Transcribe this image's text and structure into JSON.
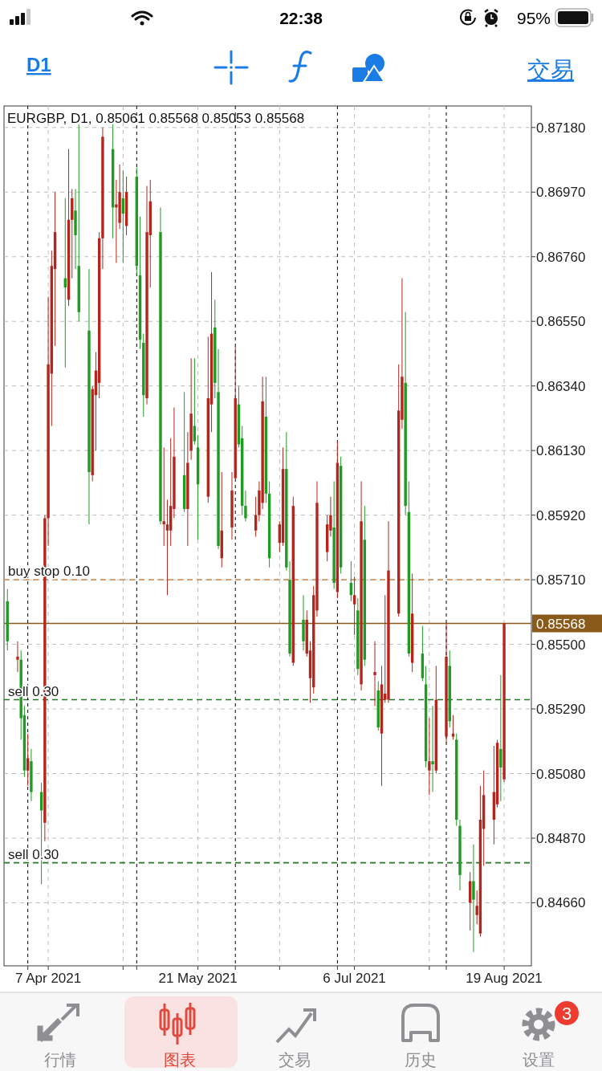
{
  "chart_data": {
    "type": "candlestick",
    "title": "EURGBP, D1, 0.85061 0.85568 0.85053 0.85568",
    "x": [
      "2021-03-26",
      "2021-03-29",
      "2021-03-30",
      "2021-03-31",
      "2021-04-01",
      "2021-04-02",
      "2021-04-05",
      "2021-04-06",
      "2021-04-07",
      "2021-04-08",
      "2021-04-09",
      "2021-04-12",
      "2021-04-13",
      "2021-04-14",
      "2021-04-15",
      "2021-04-16",
      "2021-04-19",
      "2021-04-20",
      "2021-04-21",
      "2021-04-22",
      "2021-04-23",
      "2021-04-26",
      "2021-04-27",
      "2021-04-28",
      "2021-04-29",
      "2021-04-30",
      "2021-05-03",
      "2021-05-04",
      "2021-05-05",
      "2021-05-06",
      "2021-05-07",
      "2021-05-10",
      "2021-05-11",
      "2021-05-12",
      "2021-05-13",
      "2021-05-14",
      "2021-05-17",
      "2021-05-18",
      "2021-05-19",
      "2021-05-20",
      "2021-05-21",
      "2021-05-24",
      "2021-05-25",
      "2021-05-26",
      "2021-05-27",
      "2021-05-28",
      "2021-05-31",
      "2021-06-01",
      "2021-06-02",
      "2021-06-03",
      "2021-06-04",
      "2021-06-07",
      "2021-06-08",
      "2021-06-09",
      "2021-06-10",
      "2021-06-11",
      "2021-06-14",
      "2021-06-15",
      "2021-06-16",
      "2021-06-17",
      "2021-06-18",
      "2021-06-21",
      "2021-06-22",
      "2021-06-23",
      "2021-06-24",
      "2021-06-25",
      "2021-06-28",
      "2021-06-29",
      "2021-06-30",
      "2021-07-01",
      "2021-07-02",
      "2021-07-05",
      "2021-07-06",
      "2021-07-07",
      "2021-07-08",
      "2021-07-09",
      "2021-07-12",
      "2021-07-13",
      "2021-07-14",
      "2021-07-15",
      "2021-07-16",
      "2021-07-19",
      "2021-07-20",
      "2021-07-21",
      "2021-07-22",
      "2021-07-23",
      "2021-07-26",
      "2021-07-27",
      "2021-07-28",
      "2021-07-29",
      "2021-07-30",
      "2021-08-02",
      "2021-08-03",
      "2021-08-04",
      "2021-08-05",
      "2021-08-06",
      "2021-08-09",
      "2021-08-10",
      "2021-08-11",
      "2021-08-12",
      "2021-08-13",
      "2021-08-16",
      "2021-08-17",
      "2021-08-18",
      "2021-08-19"
    ],
    "ohlc": [
      [
        0.8564,
        0.8568,
        0.8548,
        0.8551
      ],
      [
        0.8545,
        0.8551,
        0.8541,
        0.8546
      ],
      [
        0.8545,
        0.8548,
        0.8519,
        0.8526
      ],
      [
        0.8527,
        0.853,
        0.8507,
        0.8509
      ],
      [
        0.8509,
        0.8521,
        0.8504,
        0.8513
      ],
      [
        0.8512,
        0.8516,
        0.8499,
        0.8502
      ],
      [
        0.8502,
        0.8505,
        0.8472,
        0.8496
      ],
      [
        0.8492,
        0.8592,
        0.8486,
        0.8591
      ],
      [
        0.8591,
        0.8663,
        0.8582,
        0.8641
      ],
      [
        0.8638,
        0.8678,
        0.8621,
        0.8673
      ],
      [
        0.8672,
        0.8697,
        0.8647,
        0.8684
      ],
      [
        0.8669,
        0.8695,
        0.864,
        0.8666
      ],
      [
        0.8662,
        0.8711,
        0.866,
        0.8688
      ],
      [
        0.8688,
        0.8698,
        0.8669,
        0.8695
      ],
      [
        0.8691,
        0.8698,
        0.8672,
        0.8683
      ],
      [
        0.8673,
        0.8719,
        0.8655,
        0.8658
      ],
      [
        0.8652,
        0.8672,
        0.8589,
        0.8606
      ],
      [
        0.8605,
        0.8634,
        0.8603,
        0.8633
      ],
      [
        0.8631,
        0.8645,
        0.8613,
        0.8639
      ],
      [
        0.8635,
        0.8684,
        0.863,
        0.8682
      ],
      [
        0.8682,
        0.8718,
        0.8672,
        0.8715
      ],
      [
        0.8711,
        0.8719,
        0.8682,
        0.8692
      ],
      [
        0.8692,
        0.8701,
        0.8674,
        0.8693
      ],
      [
        0.8687,
        0.8706,
        0.8685,
        0.8697
      ],
      [
        0.8695,
        0.8704,
        0.8674,
        0.869
      ],
      [
        0.8686,
        0.8702,
        0.8683,
        0.8697
      ],
      [
        0.8702,
        0.8705,
        0.867,
        0.8673
      ],
      [
        0.867,
        0.8689,
        0.8646,
        0.8649
      ],
      [
        0.8648,
        0.8651,
        0.8624,
        0.8631
      ],
      [
        0.863,
        0.8699,
        0.8628,
        0.8684
      ],
      [
        0.8683,
        0.8701,
        0.8666,
        0.8694
      ],
      [
        0.8684,
        0.8692,
        0.8589,
        0.859
      ],
      [
        0.8589,
        0.8614,
        0.8582,
        0.859
      ],
      [
        0.8587,
        0.8597,
        0.8566,
        0.8589
      ],
      [
        0.8587,
        0.8617,
        0.8582,
        0.8595
      ],
      [
        0.8594,
        0.8627,
        0.8591,
        0.8611
      ],
      [
        0.8605,
        0.8632,
        0.8593,
        0.8594
      ],
      [
        0.8594,
        0.8619,
        0.8582,
        0.8609
      ],
      [
        0.8613,
        0.8643,
        0.861,
        0.8625
      ],
      [
        0.8621,
        0.8643,
        0.8615,
        0.8616
      ],
      [
        0.8614,
        0.8618,
        0.8584,
        0.8602
      ],
      [
        0.8598,
        0.865,
        0.8596,
        0.863
      ],
      [
        0.8628,
        0.8671,
        0.8619,
        0.8651
      ],
      [
        0.8653,
        0.8662,
        0.863,
        0.8635
      ],
      [
        0.8632,
        0.8646,
        0.8581,
        0.8582
      ],
      [
        0.8578,
        0.8606,
        0.8575,
        0.8587
      ],
      [
        0.8588,
        0.8606,
        0.8584,
        0.86
      ],
      [
        0.8604,
        0.8647,
        0.8604,
        0.863
      ],
      [
        0.8628,
        0.8634,
        0.8614,
        0.8615
      ],
      [
        0.8617,
        0.8621,
        0.8592,
        0.8595
      ],
      [
        0.8595,
        0.86,
        0.859,
        0.8591
      ],
      [
        0.8587,
        0.8598,
        0.8585,
        0.8592
      ],
      [
        0.8592,
        0.8603,
        0.859,
        0.86
      ],
      [
        0.8596,
        0.8637,
        0.8594,
        0.8629
      ],
      [
        0.8624,
        0.8637,
        0.8596,
        0.8599
      ],
      [
        0.8599,
        0.8603,
        0.8575,
        0.8578
      ],
      [
        0.8583,
        0.859,
        0.858,
        0.8589
      ],
      [
        0.8583,
        0.8614,
        0.8582,
        0.8607
      ],
      [
        0.8607,
        0.8619,
        0.8574,
        0.8575
      ],
      [
        0.8571,
        0.8577,
        0.8546,
        0.8547
      ],
      [
        0.8544,
        0.8598,
        0.8543,
        0.8595
      ],
      [
        0.8558,
        0.8566,
        0.8548,
        0.8551
      ],
      [
        0.8547,
        0.8561,
        0.8546,
        0.8558
      ],
      [
        0.8539,
        0.8551,
        0.8531,
        0.8548
      ],
      [
        0.8536,
        0.8569,
        0.8534,
        0.8566
      ],
      [
        0.8561,
        0.8603,
        0.8559,
        0.8596
      ],
      [
        0.858,
        0.8592,
        0.8577,
        0.8589
      ],
      [
        0.8587,
        0.8598,
        0.8585,
        0.8592
      ],
      [
        0.8588,
        0.8603,
        0.8568,
        0.857
      ],
      [
        0.8567,
        0.8616,
        0.8565,
        0.8609
      ],
      [
        0.8608,
        0.8611,
        0.8573,
        0.8575
      ],
      [
        0.857,
        0.8577,
        0.8564,
        0.8566
      ],
      [
        0.8563,
        0.8572,
        0.8553,
        0.8566
      ],
      [
        0.8561,
        0.8565,
        0.854,
        0.8542
      ],
      [
        0.8537,
        0.8603,
        0.8535,
        0.859
      ],
      [
        0.8584,
        0.8595,
        0.8543,
        0.8545
      ],
      [
        0.854,
        0.8551,
        0.853,
        0.8541
      ],
      [
        0.8535,
        0.8538,
        0.8522,
        0.8523
      ],
      [
        0.8521,
        0.8543,
        0.8504,
        0.8537
      ],
      [
        0.8532,
        0.8566,
        0.8531,
        0.8534
      ],
      [
        0.8532,
        0.859,
        0.8531,
        0.8574
      ],
      [
        0.856,
        0.8641,
        0.8559,
        0.8626
      ],
      [
        0.8623,
        0.8669,
        0.862,
        0.8637
      ],
      [
        0.8635,
        0.8658,
        0.8592,
        0.8595
      ],
      [
        0.8593,
        0.8603,
        0.8546,
        0.8547
      ],
      [
        0.8544,
        0.8573,
        0.8541,
        0.856
      ],
      [
        0.8547,
        0.8556,
        0.8538,
        0.8539
      ],
      [
        0.8537,
        0.8543,
        0.851,
        0.8512
      ],
      [
        0.8509,
        0.8526,
        0.8501,
        0.8512
      ],
      [
        0.8512,
        0.853,
        0.8502,
        0.8511
      ],
      [
        0.8509,
        0.8543,
        0.8508,
        0.8532
      ],
      [
        0.852,
        0.8557,
        0.8518,
        0.8546
      ],
      [
        0.8543,
        0.8548,
        0.8523,
        0.8525
      ],
      [
        0.852,
        0.8527,
        0.8519,
        0.8521
      ],
      [
        0.8519,
        0.8521,
        0.8491,
        0.8493
      ],
      [
        0.8491,
        0.8493,
        0.847,
        0.8475
      ],
      [
        0.8466,
        0.8476,
        0.8457,
        0.8473
      ],
      [
        0.8473,
        0.8485,
        0.845,
        0.8467
      ],
      [
        0.8462,
        0.847,
        0.8459,
        0.8465
      ],
      [
        0.8456,
        0.8504,
        0.8455,
        0.8493
      ],
      [
        0.849,
        0.8509,
        0.8478,
        0.8501
      ],
      [
        0.8493,
        0.8517,
        0.8485,
        0.8502
      ],
      [
        0.8498,
        0.8519,
        0.8497,
        0.8518
      ],
      [
        0.8516,
        0.854,
        0.8499,
        0.851
      ],
      [
        0.85061,
        0.85568,
        0.85053,
        0.85568
      ]
    ],
    "colors": [
      "#1f9a23",
      "#b3261e",
      "#1f9a23",
      "#1f9a23",
      "#b3261e",
      "#1f9a23",
      "#1f9a23",
      "#b3261e",
      "#b3261e",
      "#b3261e",
      "#b3261e",
      "#1f9a23",
      "#b3261e",
      "#b3261e",
      "#1f9a23",
      "#1f9a23",
      "#1f9a23",
      "#b3261e",
      "#b3261e",
      "#b3261e",
      "#b3261e",
      "#1f9a23",
      "#b3261e",
      "#b3261e",
      "#1f9a23",
      "#b3261e",
      "#1f9a23",
      "#1f9a23",
      "#1f9a23",
      "#b3261e",
      "#b3261e",
      "#1f9a23",
      "#b3261e",
      "#b3261e",
      "#b3261e",
      "#b3261e",
      "#1f9a23",
      "#b3261e",
      "#b3261e",
      "#1f9a23",
      "#1f9a23",
      "#b3261e",
      "#b3261e",
      "#1f9a23",
      "#1f9a23",
      "#b3261e",
      "#b3261e",
      "#b3261e",
      "#1f9a23",
      "#1f9a23",
      "#1f9a23",
      "#b3261e",
      "#b3261e",
      "#b3261e",
      "#1f9a23",
      "#1f9a23",
      "#b3261e",
      "#b3261e",
      "#1f9a23",
      "#1f9a23",
      "#b3261e",
      "#1f9a23",
      "#b3261e",
      "#b3261e",
      "#b3261e",
      "#b3261e",
      "#b3261e",
      "#b3261e",
      "#1f9a23",
      "#b3261e",
      "#1f9a23",
      "#1f9a23",
      "#b3261e",
      "#1f9a23",
      "#b3261e",
      "#1f9a23",
      "#b3261e",
      "#1f9a23",
      "#b3261e",
      "#b3261e",
      "#b3261e",
      "#b3261e",
      "#b3261e",
      "#1f9a23",
      "#1f9a23",
      "#b3261e",
      "#1f9a23",
      "#1f9a23",
      "#b3261e",
      "#1f9a23",
      "#b3261e",
      "#b3261e",
      "#1f9a23",
      "#b3261e",
      "#1f9a23",
      "#1f9a23",
      "#b3261e",
      "#1f9a23",
      "#b3261e",
      "#b3261e",
      "#b3261e",
      "#b3261e",
      "#b3261e",
      "#1f9a23",
      "#b3261e"
    ],
    "xlim": [
      "2021-03-25",
      "2021-08-27"
    ],
    "xticks": [
      {
        "value": "2021-04-07",
        "label": "7 Apr 2021"
      },
      {
        "value": "2021-04-29",
        "label": null
      },
      {
        "value": "2021-05-21",
        "label": "21 May 2021"
      },
      {
        "value": "2021-06-14",
        "label": null
      },
      {
        "value": "2021-07-06",
        "label": "6 Jul 2021"
      },
      {
        "value": "2021-07-28",
        "label": null
      },
      {
        "value": "2021-08-19",
        "label": "19 Aug 2021"
      }
    ],
    "ylim": [
      0.84455,
      0.8725
    ],
    "yticks": [
      {
        "value": 0.8718,
        "label": "0.87180"
      },
      {
        "value": 0.8697,
        "label": "0.86970"
      },
      {
        "value": 0.8676,
        "label": "0.86760"
      },
      {
        "value": 0.8655,
        "label": "0.86550"
      },
      {
        "value": 0.8634,
        "label": "0.86340"
      },
      {
        "value": 0.8613,
        "label": "0.86130"
      },
      {
        "value": 0.8592,
        "label": "0.85920"
      },
      {
        "value": 0.8571,
        "label": "0.85710"
      },
      {
        "value": 0.855,
        "label": "0.85500"
      },
      {
        "value": 0.8529,
        "label": "0.85290"
      },
      {
        "value": 0.8508,
        "label": "0.85080"
      },
      {
        "value": 0.8487,
        "label": "0.84870"
      },
      {
        "value": 0.8466,
        "label": "0.84660"
      }
    ],
    "grid": true,
    "ref_lines": [
      {
        "axis": "y",
        "value": 0.85568,
        "label": "0.85568",
        "color": "#8a5a1a",
        "line_style": "solid"
      },
      {
        "axis": "y",
        "value": 0.8571,
        "label": "buy stop 0.10",
        "color": "#d4945a",
        "line_style": "dashed"
      },
      {
        "axis": "y",
        "value": 0.8532,
        "label": "sell 0.30",
        "color": "#1e7d1e",
        "line_style": "dashed"
      },
      {
        "axis": "y",
        "value": 0.8479,
        "label": "sell 0.30",
        "color": "#1e7d1e",
        "line_style": "dashed"
      },
      {
        "axis": "x",
        "value": "2021-04-01",
        "color": "#000000",
        "line_style": "dashed"
      },
      {
        "axis": "x",
        "value": "2021-05-03",
        "color": "#000000",
        "line_style": "dashed"
      },
      {
        "axis": "x",
        "value": "2021-06-01",
        "color": "#000000",
        "line_style": "dashed"
      },
      {
        "axis": "x",
        "value": "2021-07-01",
        "color": "#000000",
        "line_style": "dashed"
      },
      {
        "axis": "x",
        "value": "2021-08-02",
        "color": "#000000",
        "line_style": "dashed"
      }
    ],
    "annotations": [
      "22:38",
      "95%",
      "D1",
      "交易",
      "行情",
      "图表",
      "交易",
      "历史",
      "设置",
      "3"
    ]
  }
}
